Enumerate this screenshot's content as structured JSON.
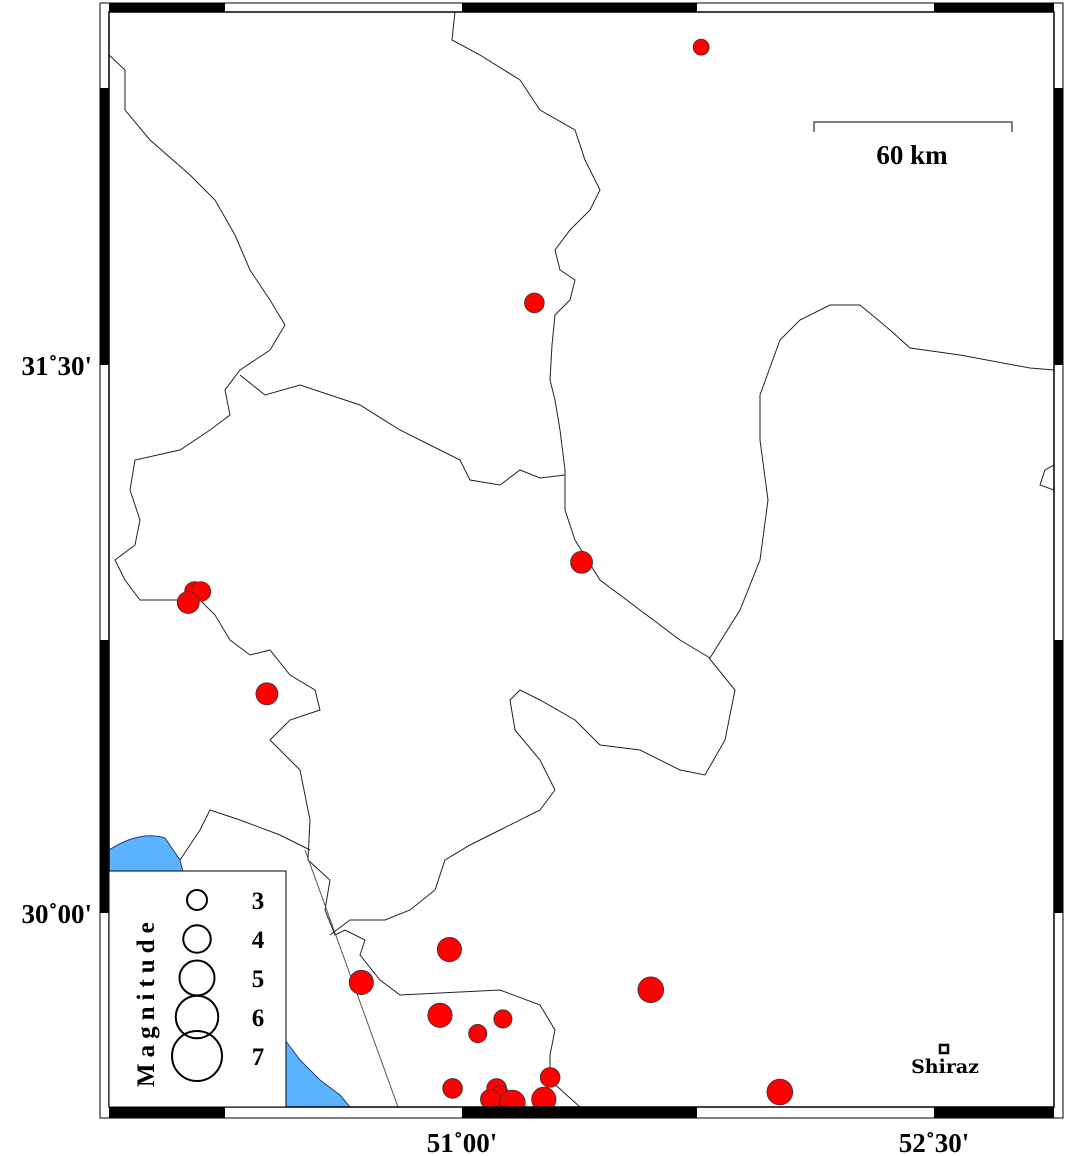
{
  "map": {
    "axes": {
      "x_ticks": [
        {
          "value": 51.0,
          "label": "51˚00'"
        },
        {
          "value": 52.5,
          "label": "52˚30'"
        }
      ],
      "y_ticks": [
        {
          "value": 31.5,
          "label": "31˚30'"
        },
        {
          "value": 30.0,
          "label": "30˚00'"
        }
      ]
    },
    "scale_bar": {
      "label": "60 km"
    },
    "city": {
      "name": "Shiraz",
      "lon": 52.53,
      "lat": 29.63
    },
    "legend": {
      "title": "Magnitude",
      "items": [
        {
          "mag": 3,
          "label": "3"
        },
        {
          "mag": 4,
          "label": "4"
        },
        {
          "mag": 5,
          "label": "5"
        },
        {
          "mag": 6,
          "label": "6"
        },
        {
          "mag": 7,
          "label": "7"
        }
      ]
    },
    "colors": {
      "event": "#ff0000",
      "water": "#5cb3ff",
      "boundary": "#222222"
    },
    "events": [
      {
        "lon": 51.76,
        "lat": 32.37,
        "mag": 2.2
      },
      {
        "lon": 51.23,
        "lat": 31.67,
        "mag": 2.7
      },
      {
        "lon": 51.38,
        "lat": 30.96,
        "mag": 3.0
      },
      {
        "lon": 50.15,
        "lat": 30.88,
        "mag": 2.7
      },
      {
        "lon": 50.17,
        "lat": 30.88,
        "mag": 2.7
      },
      {
        "lon": 50.13,
        "lat": 30.85,
        "mag": 3.0
      },
      {
        "lon": 50.38,
        "lat": 30.6,
        "mag": 3.0
      },
      {
        "lon": 50.96,
        "lat": 29.9,
        "mag": 3.3
      },
      {
        "lon": 50.68,
        "lat": 29.81,
        "mag": 3.3
      },
      {
        "lon": 50.93,
        "lat": 29.72,
        "mag": 3.3
      },
      {
        "lon": 51.13,
        "lat": 29.71,
        "mag": 2.5
      },
      {
        "lon": 51.05,
        "lat": 29.67,
        "mag": 2.5
      },
      {
        "lon": 51.6,
        "lat": 29.79,
        "mag": 3.5
      },
      {
        "lon": 51.28,
        "lat": 29.55,
        "mag": 2.7
      },
      {
        "lon": 50.97,
        "lat": 29.52,
        "mag": 2.7
      },
      {
        "lon": 51.11,
        "lat": 29.52,
        "mag": 2.7
      },
      {
        "lon": 51.12,
        "lat": 29.5,
        "mag": 2.7
      },
      {
        "lon": 51.09,
        "lat": 29.49,
        "mag": 2.7
      },
      {
        "lon": 51.16,
        "lat": 29.48,
        "mag": 3.5
      },
      {
        "lon": 51.26,
        "lat": 29.49,
        "mag": 3.3
      },
      {
        "lon": 52.01,
        "lat": 29.51,
        "mag": 3.5
      }
    ]
  }
}
